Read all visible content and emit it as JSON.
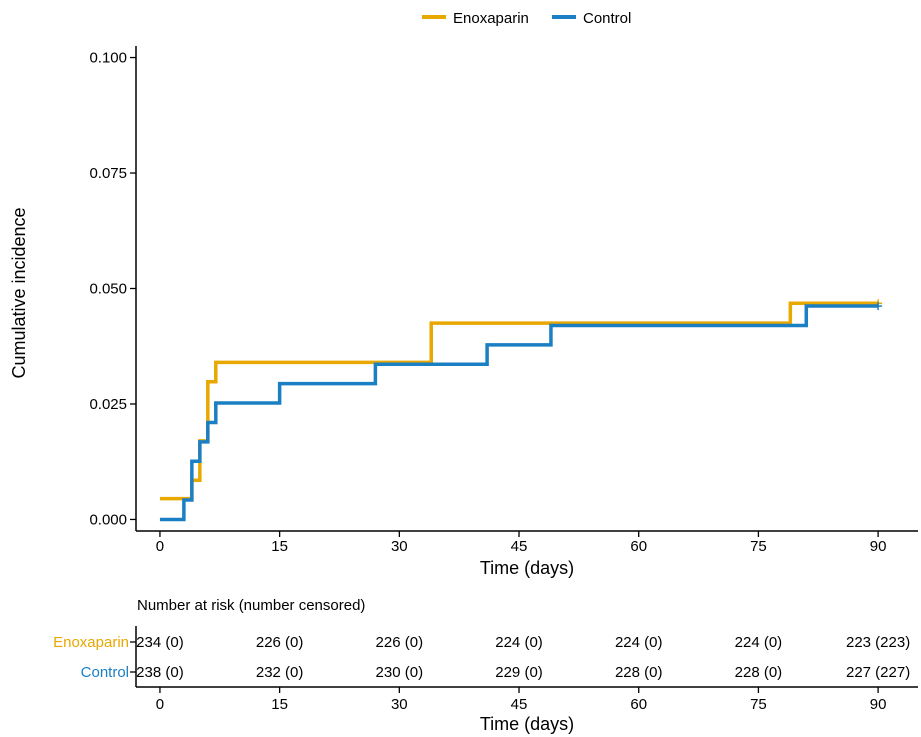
{
  "chart_data": {
    "type": "line",
    "subtype": "step",
    "legend": {
      "placement": "top-center",
      "entries": [
        "Enoxaparin",
        "Control"
      ]
    },
    "series": [
      {
        "name": "Enoxaparin",
        "color": "#E8A800",
        "points": [
          [
            0,
            0.0045
          ],
          [
            4,
            0.0045
          ],
          [
            4,
            0.0085
          ],
          [
            5,
            0.0085
          ],
          [
            5,
            0.017
          ],
          [
            6,
            0.017
          ],
          [
            6,
            0.0298
          ],
          [
            7,
            0.0298
          ],
          [
            7,
            0.034
          ],
          [
            34,
            0.034
          ],
          [
            34,
            0.0425
          ],
          [
            79,
            0.0425
          ],
          [
            79,
            0.0468
          ],
          [
            90,
            0.0468
          ]
        ],
        "censor_marks": [
          [
            90,
            0.0468
          ]
        ]
      },
      {
        "name": "Control",
        "color": "#1B7FC4",
        "points": [
          [
            0,
            0
          ],
          [
            3,
            0
          ],
          [
            3,
            0.0042
          ],
          [
            4,
            0.0042
          ],
          [
            4,
            0.0126
          ],
          [
            5,
            0.0126
          ],
          [
            5,
            0.0168
          ],
          [
            6,
            0.0168
          ],
          [
            6,
            0.021
          ],
          [
            7,
            0.021
          ],
          [
            7,
            0.0252
          ],
          [
            15,
            0.0252
          ],
          [
            15,
            0.0294
          ],
          [
            27,
            0.0294
          ],
          [
            27,
            0.0336
          ],
          [
            41,
            0.0336
          ],
          [
            41,
            0.0378
          ],
          [
            49,
            0.0378
          ],
          [
            49,
            0.042
          ],
          [
            81,
            0.042
          ],
          [
            81,
            0.0462
          ],
          [
            90,
            0.0462
          ]
        ],
        "censor_marks": [
          [
            90,
            0.0462
          ]
        ]
      }
    ],
    "xlabel": "Time (days)",
    "ylabel": "Cumulative incidence",
    "xlim": [
      -3,
      95
    ],
    "ylim": [
      -0.0025,
      0.1025
    ],
    "x_ticks": [
      0,
      15,
      30,
      45,
      60,
      75,
      90
    ],
    "x_tick_labels": [
      "0",
      "15",
      "30",
      "45",
      "60",
      "75",
      "90"
    ],
    "y_ticks": [
      0,
      0.025,
      0.05,
      0.075,
      0.1
    ],
    "y_tick_labels": [
      "0.000",
      "0.025",
      "0.050",
      "0.075",
      "0.100"
    ],
    "grid": false
  },
  "risk_table": {
    "title": "Number at risk (number censored)",
    "xlabel": "Time (days)",
    "times": [
      0,
      15,
      30,
      45,
      60,
      75,
      90
    ],
    "time_labels": [
      "0",
      "15",
      "30",
      "45",
      "60",
      "75",
      "90"
    ],
    "rows": [
      {
        "label": "Enoxaparin",
        "color": "#E8A800",
        "values": [
          "234 (0)",
          "226 (0)",
          "226 (0)",
          "224 (0)",
          "224 (0)",
          "224 (0)",
          "223 (223)"
        ]
      },
      {
        "label": "Control",
        "color": "#1B7FC4",
        "values": [
          "238 (0)",
          "232 (0)",
          "230 (0)",
          "229 (0)",
          "228 (0)",
          "228 (0)",
          "227 (227)"
        ]
      }
    ]
  }
}
